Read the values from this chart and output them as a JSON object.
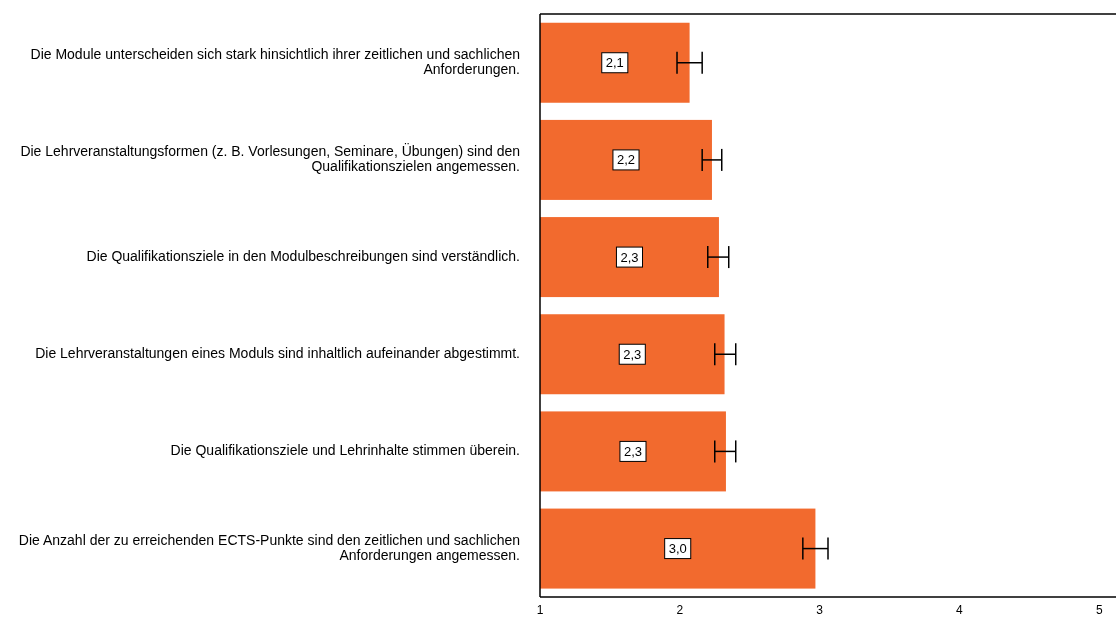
{
  "chart_data": {
    "type": "bar",
    "orientation": "horizontal",
    "categories": [
      "Die Module unterscheiden sich stark hinsichtlich ihrer zeitlichen und sachlichen Anforderungen.",
      "Die Lehrveranstaltungsformen (z. B. Vorlesungen, Seminare, Übungen) sind den Qualifikationszielen angemessen.",
      "Die Qualifikationsziele in den Modulbeschreibungen sind verständlich.",
      "Die Lehrveranstaltungen eines Moduls sind inhaltlich aufeinander abgestimmt.",
      "Die Qualifikationsziele und Lehrinhalte stimmen überein.",
      "Die Anzahl der zu erreichenden ECTS-Punkte sind den zeitlichen und sachlichen Anforderungen angemessen."
    ],
    "values": [
      2.07,
      2.23,
      2.28,
      2.32,
      2.33,
      2.97
    ],
    "value_labels": [
      "2,1",
      "2,2",
      "2,3",
      "2,3",
      "2,3",
      "3,0"
    ],
    "errors": [
      [
        1.98,
        2.16
      ],
      [
        2.16,
        2.3
      ],
      [
        2.2,
        2.35
      ],
      [
        2.25,
        2.4
      ],
      [
        2.25,
        2.4
      ],
      [
        2.88,
        3.06
      ]
    ],
    "color": "#f26a2e",
    "xlim": [
      1,
      5.12
    ],
    "xticks": [
      1,
      2,
      3,
      4,
      5
    ]
  }
}
